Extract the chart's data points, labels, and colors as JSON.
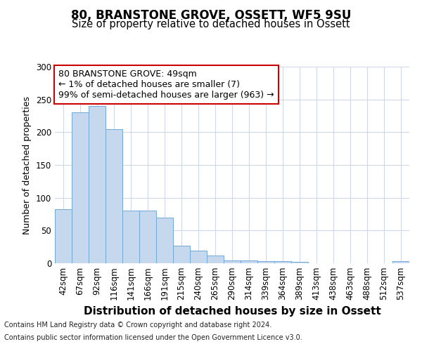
{
  "title1": "80, BRANSTONE GROVE, OSSETT, WF5 9SU",
  "title2": "Size of property relative to detached houses in Ossett",
  "xlabel": "Distribution of detached houses by size in Ossett",
  "ylabel": "Number of detached properties",
  "categories": [
    "42sqm",
    "67sqm",
    "92sqm",
    "116sqm",
    "141sqm",
    "166sqm",
    "191sqm",
    "215sqm",
    "240sqm",
    "265sqm",
    "290sqm",
    "314sqm",
    "339sqm",
    "364sqm",
    "389sqm",
    "413sqm",
    "438sqm",
    "463sqm",
    "488sqm",
    "512sqm",
    "537sqm"
  ],
  "values": [
    83,
    230,
    240,
    205,
    80,
    80,
    70,
    27,
    19,
    12,
    4,
    4,
    3,
    3,
    2,
    0,
    0,
    0,
    0,
    0,
    3
  ],
  "bar_color": "#c5d8ed",
  "bar_edge_color": "#6fa8d8",
  "annotation_text": "80 BRANSTONE GROVE: 49sqm\n← 1% of detached houses are smaller (7)\n99% of semi-detached houses are larger (963) →",
  "annotation_box_color": "#ffffff",
  "annotation_box_edge": "#cc0000",
  "ylim": [
    0,
    300
  ],
  "yticks": [
    0,
    50,
    100,
    150,
    200,
    250,
    300
  ],
  "footnote1": "Contains HM Land Registry data © Crown copyright and database right 2024.",
  "footnote2": "Contains public sector information licensed under the Open Government Licence v3.0.",
  "bg_color": "#ffffff",
  "grid_color": "#d0d8e8",
  "title1_fontsize": 12,
  "title2_fontsize": 10.5,
  "annotation_fontsize": 9,
  "ylabel_fontsize": 9,
  "xlabel_fontsize": 11,
  "tick_fontsize": 8.5,
  "footnote_fontsize": 7
}
